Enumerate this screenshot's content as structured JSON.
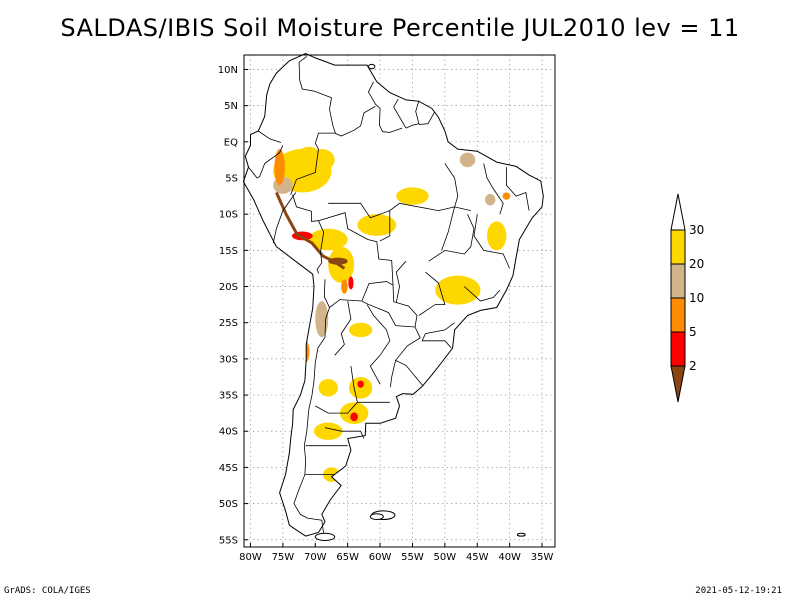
{
  "title": "SALDAS/IBIS Soil Moisture Percentile JUL2010 lev = 11",
  "footer": {
    "left": "GrADS: COLA/IGES",
    "right": "2021-05-12-19:21"
  },
  "chart_data": {
    "type": "heatmap",
    "title": "SALDAS/IBIS Soil Moisture Percentile JUL2010 lev = 11",
    "lat_labels": [
      "10N",
      "5N",
      "EQ",
      "5S",
      "10S",
      "15S",
      "20S",
      "25S",
      "30S",
      "35S",
      "40S",
      "45S",
      "50S",
      "55S"
    ],
    "lon_labels": [
      "80W",
      "75W",
      "70W",
      "65W",
      "60W",
      "55W",
      "50W",
      "45W",
      "40W",
      "35W"
    ],
    "lat_range": [
      -56,
      12
    ],
    "lon_range": [
      -81,
      -33
    ],
    "grid": true,
    "colorbar": {
      "position": "right",
      "levels": [
        "2",
        "5",
        "10",
        "20",
        "30"
      ],
      "colors": [
        "#8b4513",
        "#ff0000",
        "#ff8c00",
        "#d2b48c",
        "#ffd700",
        "#ffffff"
      ]
    },
    "dry_regions": [
      {
        "lon": -72.0,
        "lat": -4.0,
        "rx": 4.5,
        "ry": 3.0,
        "category": "20-30"
      },
      {
        "lon": -69.0,
        "lat": -2.5,
        "rx": 2.0,
        "ry": 1.5,
        "category": "20-30"
      },
      {
        "lon": -75.0,
        "lat": -6.0,
        "rx": 1.5,
        "ry": 1.2,
        "category": "10-20"
      },
      {
        "lon": -68.0,
        "lat": -13.5,
        "rx": 3.0,
        "ry": 1.5,
        "category": "20-30"
      },
      {
        "lon": -60.5,
        "lat": -11.5,
        "rx": 3.0,
        "ry": 1.5,
        "category": "20-30"
      },
      {
        "lon": -55.0,
        "lat": -7.5,
        "rx": 2.5,
        "ry": 1.2,
        "category": "20-30"
      },
      {
        "lon": -66.0,
        "lat": -17.0,
        "rx": 2.0,
        "ry": 2.5,
        "category": "20-30"
      },
      {
        "lon": -48.0,
        "lat": -20.5,
        "rx": 3.5,
        "ry": 2.0,
        "category": "20-30"
      },
      {
        "lon": -63.0,
        "lat": -34.0,
        "rx": 1.8,
        "ry": 1.5,
        "category": "20-30"
      },
      {
        "lon": -68.0,
        "lat": -34.0,
        "rx": 1.5,
        "ry": 1.2,
        "category": "20-30"
      },
      {
        "lon": -64.0,
        "lat": -37.5,
        "rx": 2.2,
        "ry": 1.5,
        "category": "20-30"
      },
      {
        "lon": -68.0,
        "lat": -40.0,
        "rx": 2.2,
        "ry": 1.2,
        "category": "20-30"
      },
      {
        "lon": -69.0,
        "lat": -24.5,
        "rx": 1.0,
        "ry": 2.5,
        "category": "10-20"
      },
      {
        "lon": -63.0,
        "lat": -26.0,
        "rx": 1.8,
        "ry": 1.0,
        "category": "20-30"
      },
      {
        "lon": -67.5,
        "lat": -46.0,
        "rx": 1.3,
        "ry": 1.0,
        "category": "20-30"
      },
      {
        "lon": -71.0,
        "lat": -1.5,
        "rx": 1.5,
        "ry": 0.8,
        "category": "20-30"
      },
      {
        "lon": -75.5,
        "lat": -3.5,
        "rx": 0.8,
        "ry": 2.5,
        "category": "5-10"
      },
      {
        "lon": -72.0,
        "lat": -13.0,
        "rx": 1.6,
        "ry": 0.6,
        "category": "2-5"
      },
      {
        "lon": -66.5,
        "lat": -16.5,
        "rx": 1.5,
        "ry": 0.5,
        "category": "<2"
      },
      {
        "lon": -65.5,
        "lat": -20.0,
        "rx": 0.5,
        "ry": 1.0,
        "category": "5-10"
      },
      {
        "lon": -64.5,
        "lat": -19.5,
        "rx": 0.4,
        "ry": 0.9,
        "category": "2-5"
      },
      {
        "lon": -71.5,
        "lat": -29.0,
        "rx": 0.6,
        "ry": 1.5,
        "category": "5-10"
      },
      {
        "lon": -63.0,
        "lat": -33.5,
        "rx": 0.5,
        "ry": 0.5,
        "category": "2-5"
      },
      {
        "lon": -64.0,
        "lat": -38.0,
        "rx": 0.6,
        "ry": 0.6,
        "category": "2-5"
      },
      {
        "lon": -42.0,
        "lat": -13.0,
        "rx": 1.5,
        "ry": 2.0,
        "category": "20-30"
      },
      {
        "lon": -43.0,
        "lat": -8.0,
        "rx": 0.8,
        "ry": 0.8,
        "category": "10-20"
      },
      {
        "lon": -40.5,
        "lat": -7.5,
        "rx": 0.6,
        "ry": 0.5,
        "category": "5-10"
      },
      {
        "lon": -46.5,
        "lat": -2.5,
        "rx": 1.2,
        "ry": 1.0,
        "category": "10-20"
      }
    ]
  }
}
